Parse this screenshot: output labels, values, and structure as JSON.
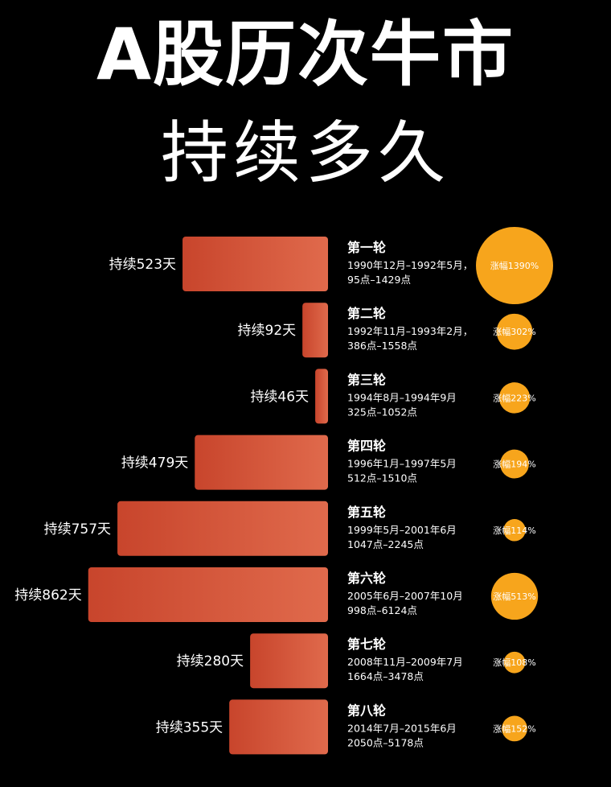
{
  "header": {
    "title": "A股历次牛市",
    "subtitle": "持续多久"
  },
  "colors": {
    "background": "#000000",
    "bar_left": "#c8452c",
    "bar_right": "#e06a4c",
    "bubble": "#f7a51c",
    "text": "#ffffff"
  },
  "chart_data": {
    "type": "bar",
    "title": "A股历次牛市 持续多久",
    "categories": [
      "第一轮",
      "第二轮",
      "第三轮",
      "第四轮",
      "第五轮",
      "第六轮",
      "第七轮",
      "第八轮"
    ],
    "series": [
      {
        "values": [
          523,
          92,
          46,
          479,
          757,
          862,
          280,
          355
        ]
      },
      {
        "values": [
          1390,
          302,
          223,
          194,
          114,
          513,
          108,
          152
        ]
      }
    ],
    "rounds": [
      {
        "name": "第一轮",
        "duration_days": 523,
        "duration_label": "持续523天",
        "period": "1990年12月–1992年5月，",
        "points": "95点–1429点",
        "gain_pct": 1390,
        "gain_label": "涨幅1390%"
      },
      {
        "name": "第二轮",
        "duration_days": 92,
        "duration_label": "持续92天",
        "period": "1992年11月–1993年2月，",
        "points": "386点–1558点",
        "gain_pct": 302,
        "gain_label": "涨幅302%"
      },
      {
        "name": "第三轮",
        "duration_days": 46,
        "duration_label": "持续46天",
        "period": "1994年8月–1994年9月",
        "points": "325点–1052点",
        "gain_pct": 223,
        "gain_label": "涨幅223%"
      },
      {
        "name": "第四轮",
        "duration_days": 479,
        "duration_label": "持续479天",
        "period": "1996年1月–1997年5月",
        "points": "512点–1510点",
        "gain_pct": 194,
        "gain_label": "涨幅194%"
      },
      {
        "name": "第五轮",
        "duration_days": 757,
        "duration_label": "持续757天",
        "period": "1999年5月–2001年6月",
        "points": "1047点–2245点",
        "gain_pct": 114,
        "gain_label": "涨幅114%"
      },
      {
        "name": "第六轮",
        "duration_days": 862,
        "duration_label": "持续862天",
        "period": "2005年6月–2007年10月",
        "points": "998点–6124点",
        "gain_pct": 513,
        "gain_label": "涨幅513%"
      },
      {
        "name": "第七轮",
        "duration_days": 280,
        "duration_label": "持续280天",
        "period": "2008年11月–2009年7月",
        "points": "1664点–3478点",
        "gain_pct": 108,
        "gain_label": "涨幅108%"
      },
      {
        "name": "第八轮",
        "duration_days": 355,
        "duration_label": "持续355天",
        "period": "2014年7月–2015年6月",
        "points": "2050点–5178点",
        "gain_pct": 152,
        "gain_label": "涨幅152%"
      }
    ]
  }
}
